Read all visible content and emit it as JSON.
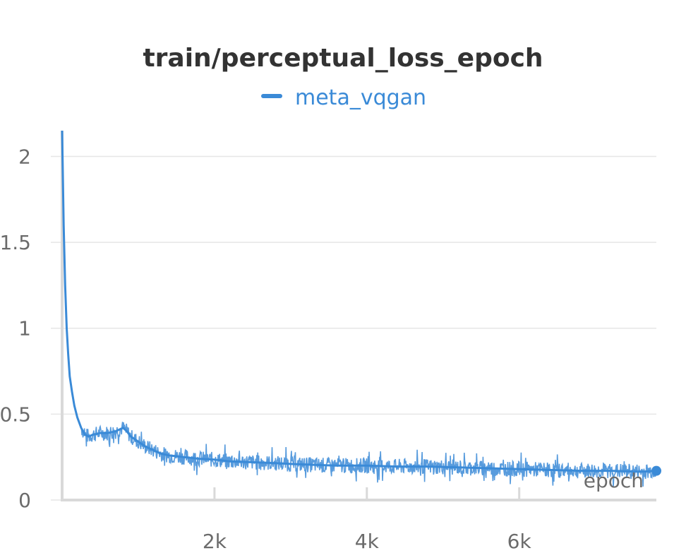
{
  "chart_data": {
    "type": "line",
    "title": "train/perceptual_loss_epoch",
    "xlabel": "epoch",
    "ylabel": "",
    "xlim": [
      0,
      7800
    ],
    "ylim": [
      0,
      2.15
    ],
    "x_ticks": [
      2000,
      4000,
      6000
    ],
    "x_tick_labels": [
      "2k",
      "4k",
      "6k"
    ],
    "y_ticks": [
      0,
      0.5,
      1,
      1.5,
      2
    ],
    "y_tick_labels": [
      "0",
      "0.5",
      "1",
      "1.5",
      "2"
    ],
    "grid": true,
    "legend_position": "top-center",
    "series": [
      {
        "name": "meta_vqgan",
        "color": "#3a8ad7",
        "x": [
          0,
          20,
          40,
          60,
          80,
          100,
          130,
          160,
          200,
          250,
          300,
          350,
          400,
          500,
          600,
          700,
          800,
          850,
          900,
          1000,
          1100,
          1200,
          1300,
          1400,
          1600,
          1800,
          2000,
          2200,
          2500,
          2800,
          3000,
          3300,
          3600,
          4000,
          4400,
          4800,
          5200,
          5600,
          6000,
          6400,
          6800,
          7200,
          7600,
          7800
        ],
        "values": [
          2.15,
          1.6,
          1.25,
          1.0,
          0.85,
          0.72,
          0.63,
          0.55,
          0.48,
          0.42,
          0.38,
          0.37,
          0.38,
          0.39,
          0.39,
          0.4,
          0.42,
          0.4,
          0.37,
          0.34,
          0.31,
          0.29,
          0.27,
          0.26,
          0.25,
          0.24,
          0.235,
          0.225,
          0.22,
          0.215,
          0.21,
          0.205,
          0.2,
          0.2,
          0.195,
          0.195,
          0.19,
          0.185,
          0.18,
          0.175,
          0.17,
          0.17,
          0.165,
          0.17
        ]
      }
    ]
  }
}
